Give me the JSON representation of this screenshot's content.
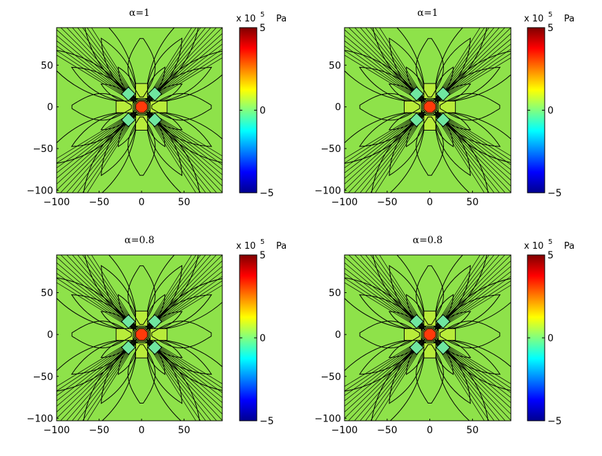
{
  "figure": {
    "colors": {
      "field_green": "#8ee24a",
      "contour_line": "#000000",
      "center_red": "#ff3a0a"
    },
    "colormap": [
      "#00008f",
      "#0000ff",
      "#0080ff",
      "#00ffff",
      "#80ff80",
      "#ffff00",
      "#ff8000",
      "#ff0000",
      "#800000"
    ]
  },
  "chart_data": [
    {
      "type": "heatmap",
      "title": "α=1",
      "x_ticks": [
        "−100",
        "−50",
        "0",
        "50"
      ],
      "y_ticks": [
        "50",
        "0",
        "−50",
        "−100"
      ],
      "xlim": [
        -100,
        95
      ],
      "ylim": [
        -103,
        95
      ],
      "grid": false,
      "contour_lines": true,
      "colorbar": {
        "ticks": [
          "5",
          "0",
          "−5"
        ],
        "range": [
          -5,
          5
        ],
        "multiplier": "x 10",
        "exponent": "5",
        "unit": "Pa"
      },
      "lobe_angles_deg": [
        30,
        60,
        120,
        150,
        210,
        240,
        300,
        330
      ]
    },
    {
      "type": "heatmap",
      "title": "α=1",
      "x_ticks": [
        "−100",
        "−50",
        "0",
        "50"
      ],
      "y_ticks": [
        "50",
        "0",
        "−50",
        "−100"
      ],
      "xlim": [
        -100,
        95
      ],
      "ylim": [
        -103,
        95
      ],
      "grid": false,
      "contour_lines": true,
      "colorbar": {
        "ticks": [
          "5",
          "0",
          "−5"
        ],
        "range": [
          -5,
          5
        ],
        "multiplier": "x 10",
        "exponent": "5",
        "unit": "Pa"
      },
      "lobe_angles_deg": [
        30,
        60,
        120,
        150,
        210,
        240,
        300,
        330
      ]
    },
    {
      "type": "heatmap",
      "title": "α=0.8",
      "x_ticks": [
        "−100",
        "−50",
        "0",
        "50"
      ],
      "y_ticks": [
        "50",
        "0",
        "−50",
        "−100"
      ],
      "xlim": [
        -100,
        95
      ],
      "ylim": [
        -103,
        95
      ],
      "grid": false,
      "contour_lines": true,
      "colorbar": {
        "ticks": [
          "5",
          "0",
          "−5"
        ],
        "range": [
          -5,
          5
        ],
        "multiplier": "x 10",
        "exponent": "5",
        "unit": "Pa"
      },
      "lobe_angles_deg": [
        30,
        60,
        120,
        150,
        210,
        240,
        300,
        330
      ]
    },
    {
      "type": "heatmap",
      "title": "α=0.8",
      "x_ticks": [
        "−100",
        "−50",
        "0",
        "50"
      ],
      "y_ticks": [
        "50",
        "0",
        "−50",
        "−100"
      ],
      "xlim": [
        -100,
        95
      ],
      "ylim": [
        -103,
        95
      ],
      "grid": false,
      "contour_lines": true,
      "colorbar": {
        "ticks": [
          "5",
          "0",
          "−5"
        ],
        "range": [
          -5,
          5
        ],
        "multiplier": "x 10",
        "exponent": "5",
        "unit": "Pa"
      },
      "lobe_angles_deg": [
        30,
        60,
        120,
        150,
        210,
        240,
        300,
        330
      ]
    }
  ]
}
